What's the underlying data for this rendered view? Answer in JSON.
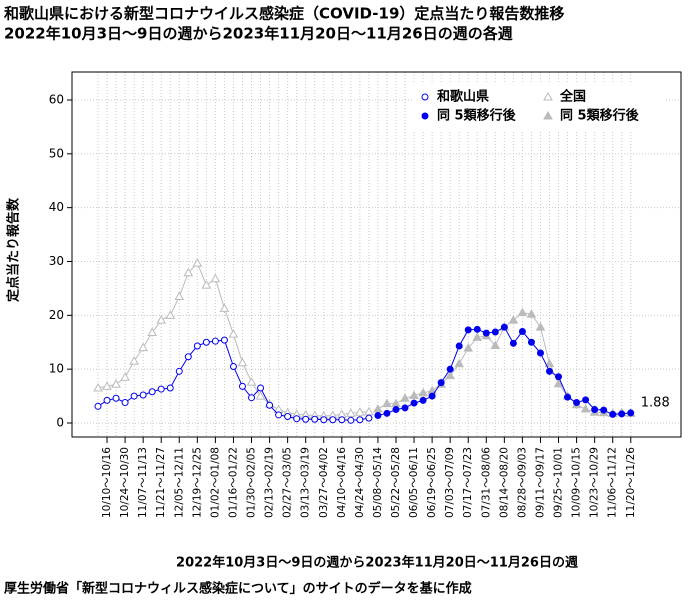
{
  "chart_data": {
    "type": "line",
    "title": "和歌山県における新型コロナウイルス感染症（COVID-19）定点当たり報告数推移",
    "subtitle": "2022年10月3日～9日の週から2023年11月20日～11月26日の週の各週",
    "x_label": "2022年10月3日～9日の週から2023年11月20日～11月26日の週",
    "y_label": "定点当たり報告数",
    "footnote": "厚生労働省「新型コロナウィルス感染症について」のサイトのデータを基に作成",
    "categories": [
      null,
      "10/10～10/16",
      null,
      "10/24～10/30",
      null,
      "11/07～11/13",
      null,
      "11/21～11/27",
      null,
      "12/05～12/11",
      null,
      "12/19～12/25",
      null,
      "01/02～01/08",
      null,
      "01/16～01/22",
      null,
      "01/30～02/05",
      null,
      "02/13～02/19",
      null,
      "02/27～03/05",
      null,
      "03/13～03/19",
      null,
      "03/27～04/02",
      null,
      "04/10～04/16",
      null,
      "04/24～04/30",
      null,
      "05/08～05/14",
      null,
      "05/22～05/28",
      null,
      "06/05～06/11",
      null,
      "06/19～06/25",
      null,
      "07/03～07/09",
      null,
      "07/17～07/23",
      null,
      "07/31～08/06",
      null,
      "08/14～08/20",
      null,
      "08/28～09/03",
      null,
      "09/11～09/17",
      null,
      "09/25～10/01",
      null,
      "10/09～10/15",
      null,
      "10/23～10/29",
      null,
      "11/06～11/12",
      null,
      "11/20～11/26"
    ],
    "series": [
      {
        "name": "和歌山県",
        "color": "#0000ee",
        "marker": "circle",
        "filled": false,
        "values": [
          3.1,
          4.2,
          4.6,
          3.8,
          5.0,
          5.2,
          5.8,
          6.3,
          6.5,
          9.6,
          12.3,
          14.3,
          15.0,
          15.2,
          15.4,
          10.5,
          6.8,
          4.7,
          6.5,
          3.3,
          1.5,
          1.2,
          0.8,
          0.7,
          0.7,
          0.6,
          0.6,
          0.6,
          0.5,
          0.6,
          0.9,
          null,
          null,
          null,
          null,
          null,
          null,
          null,
          null,
          null,
          null,
          null,
          null,
          null,
          null,
          null,
          null,
          null,
          null,
          null,
          null,
          null,
          null,
          null,
          null,
          null,
          null,
          null,
          null,
          null
        ]
      },
      {
        "name": "同 5類移行後",
        "color": "#0000ee",
        "marker": "circle",
        "filled": true,
        "values": [
          null,
          null,
          null,
          null,
          null,
          null,
          null,
          null,
          null,
          null,
          null,
          null,
          null,
          null,
          null,
          null,
          null,
          null,
          null,
          null,
          null,
          null,
          null,
          null,
          null,
          null,
          null,
          null,
          null,
          null,
          null,
          1.4,
          1.8,
          2.5,
          2.8,
          3.7,
          4.2,
          5.0,
          7.5,
          10.0,
          14.3,
          17.3,
          17.4,
          16.7,
          16.9,
          17.8,
          14.8,
          17.0,
          15.0,
          13.0,
          9.6,
          8.6,
          4.8,
          3.8,
          4.3,
          2.5,
          2.4,
          1.6,
          1.7,
          1.88
        ],
        "value_labels": [
          null,
          null,
          null,
          null,
          null,
          null,
          null,
          null,
          null,
          null,
          null,
          null,
          null,
          null,
          null,
          null,
          null,
          null,
          null,
          null,
          null,
          null,
          null,
          null,
          null,
          null,
          null,
          null,
          null,
          null,
          null,
          null,
          null,
          null,
          null,
          null,
          null,
          null,
          null,
          null,
          null,
          null,
          null,
          null,
          null,
          null,
          null,
          null,
          null,
          null,
          null,
          null,
          null,
          null,
          null,
          null,
          null,
          null,
          null,
          "1.88"
        ]
      },
      {
        "name": "全国",
        "color": "#bbbbbb",
        "marker": "triangle",
        "filled": false,
        "values": [
          6.5,
          6.8,
          7.2,
          8.5,
          11.5,
          14.0,
          16.8,
          19.1,
          20.0,
          23.5,
          27.9,
          29.7,
          25.6,
          26.8,
          21.3,
          16.5,
          11.2,
          7.6,
          5.0,
          3.5,
          2.5,
          1.9,
          1.6,
          1.5,
          1.4,
          1.3,
          1.4,
          1.6,
          1.8,
          2.0,
          2.1,
          null,
          null,
          null,
          null,
          null,
          null,
          null,
          null,
          null,
          null,
          null,
          null,
          null,
          null,
          null,
          null,
          null,
          null,
          null,
          null,
          null,
          null,
          null,
          null,
          null,
          null,
          null,
          null,
          null
        ]
      },
      {
        "name": "同 5類移行後",
        "color": "#bbbbbb",
        "marker": "triangle",
        "filled": true,
        "values": [
          null,
          null,
          null,
          null,
          null,
          null,
          null,
          null,
          null,
          null,
          null,
          null,
          null,
          null,
          null,
          null,
          null,
          null,
          null,
          null,
          null,
          null,
          null,
          null,
          null,
          null,
          null,
          null,
          null,
          null,
          null,
          2.6,
          3.6,
          3.6,
          4.6,
          5.1,
          5.6,
          6.0,
          7.2,
          8.8,
          11.0,
          13.9,
          15.9,
          16.2,
          14.4,
          17.8,
          19.1,
          20.5,
          20.2,
          17.8,
          11.0,
          7.3,
          5.0,
          3.4,
          2.6,
          2.0,
          1.9,
          1.8,
          1.9,
          1.8
        ]
      }
    ],
    "ylim": [
      -2.6,
      65.2
    ],
    "yticks": [
      0,
      10,
      20,
      30,
      40,
      50,
      60
    ],
    "grid": true
  }
}
